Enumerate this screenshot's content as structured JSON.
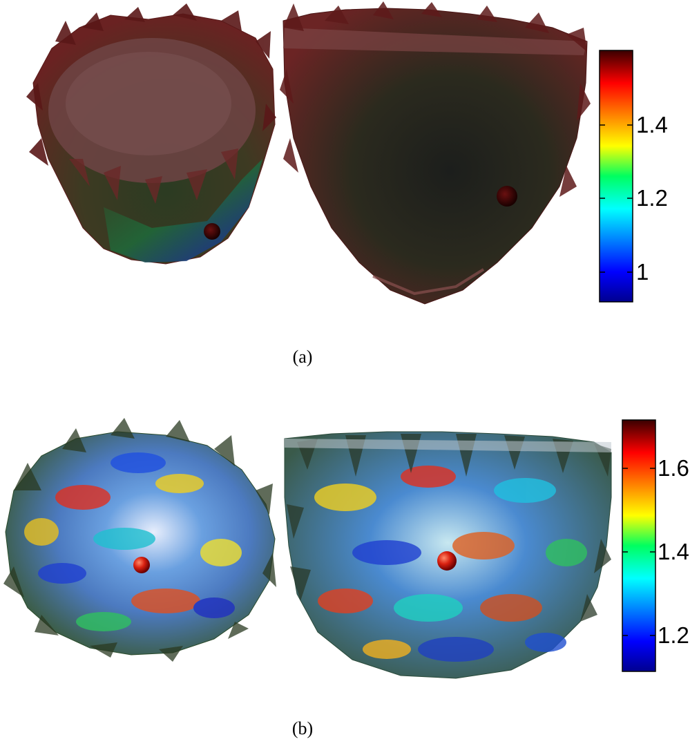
{
  "figure": {
    "panels": [
      {
        "id": "a",
        "caption": "(a)",
        "colorbar": {
          "ticks": [
            "1",
            "1.2",
            "1.4"
          ],
          "tick_values": [
            1.0,
            1.2,
            1.4
          ],
          "range": [
            0.92,
            1.6
          ],
          "colormap": "jet"
        }
      },
      {
        "id": "b",
        "caption": "(b)",
        "colorbar": {
          "ticks": [
            "1.2",
            "1.4",
            "1.6"
          ],
          "tick_values": [
            1.2,
            1.4,
            1.6
          ],
          "range": [
            1.1,
            1.7
          ],
          "colormap": "jet"
        }
      }
    ]
  }
}
